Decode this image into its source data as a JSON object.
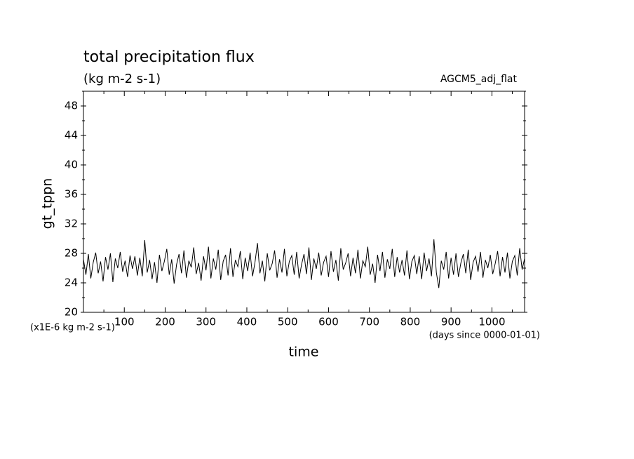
{
  "chart_data": {
    "type": "line",
    "title": "total precipitation flux",
    "subtitle": "(kg m-2 s-1)",
    "annotation": "AGCM5_adj_flat",
    "ylabel": "gt_tppn",
    "xlabel": "time",
    "yunit": "(x1E-6 kg m-2 s-1)",
    "xunit": "(days since 0000-01-01)",
    "xlim": [
      0,
      1080
    ],
    "ylim": [
      20,
      50
    ],
    "xticks": [
      100,
      200,
      300,
      400,
      500,
      600,
      700,
      800,
      900,
      1000
    ],
    "yticks": [
      20,
      24,
      28,
      32,
      36,
      40,
      44,
      48
    ],
    "xminor_ticks": [
      50,
      150,
      250,
      350,
      450,
      550,
      650,
      750,
      850,
      950,
      1050
    ],
    "yminor_ticks": [
      22,
      26,
      30,
      34,
      38,
      42,
      46,
      50
    ],
    "x": [
      0,
      6,
      12,
      18,
      24,
      30,
      36,
      42,
      48,
      54,
      60,
      66,
      72,
      78,
      84,
      90,
      96,
      102,
      108,
      114,
      120,
      126,
      132,
      138,
      144,
      150,
      156,
      162,
      168,
      174,
      180,
      186,
      192,
      198,
      204,
      210,
      216,
      222,
      228,
      234,
      240,
      246,
      252,
      258,
      264,
      270,
      276,
      282,
      288,
      294,
      300,
      306,
      312,
      318,
      324,
      330,
      336,
      342,
      348,
      354,
      360,
      366,
      372,
      378,
      384,
      390,
      396,
      402,
      408,
      414,
      420,
      426,
      432,
      438,
      444,
      450,
      456,
      462,
      468,
      474,
      480,
      486,
      492,
      498,
      504,
      510,
      516,
      522,
      528,
      534,
      540,
      546,
      552,
      558,
      564,
      570,
      576,
      582,
      588,
      594,
      600,
      606,
      612,
      618,
      624,
      630,
      636,
      642,
      648,
      654,
      660,
      666,
      672,
      678,
      684,
      690,
      696,
      702,
      708,
      714,
      720,
      726,
      732,
      738,
      744,
      750,
      756,
      762,
      768,
      774,
      780,
      786,
      792,
      798,
      804,
      810,
      816,
      822,
      828,
      834,
      840,
      846,
      852,
      858,
      864,
      870,
      876,
      882,
      888,
      894,
      900,
      906,
      912,
      918,
      924,
      930,
      936,
      942,
      948,
      954,
      960,
      966,
      972,
      978,
      984,
      990,
      996,
      1002,
      1008,
      1014,
      1020,
      1026,
      1032,
      1038,
      1044,
      1050,
      1056,
      1062,
      1068,
      1074,
      1080
    ],
    "series": [
      {
        "name": "gt_tppn",
        "color": "#000000",
        "values": [
          27.2,
          25.1,
          27.9,
          24.6,
          26.8,
          28.1,
          25.3,
          26.9,
          24.2,
          27.5,
          25.8,
          28.0,
          24.1,
          27.3,
          26.0,
          28.2,
          25.5,
          27.0,
          24.8,
          27.7,
          25.9,
          27.6,
          25.0,
          27.4,
          24.9,
          29.8,
          25.4,
          27.1,
          24.5,
          26.8,
          24.0,
          27.8,
          25.6,
          26.9,
          28.6,
          25.1,
          27.2,
          23.9,
          26.5,
          27.9,
          25.3,
          28.4,
          24.7,
          27.0,
          26.1,
          28.8,
          25.2,
          26.7,
          24.3,
          27.6,
          25.7,
          28.9,
          24.6,
          27.3,
          25.8,
          28.5,
          24.4,
          26.9,
          27.8,
          25.0,
          28.7,
          24.8,
          27.1,
          26.2,
          28.3,
          24.5,
          27.4,
          25.6,
          28.1,
          24.9,
          26.8,
          29.4,
          25.3,
          27.0,
          24.2,
          28.0,
          25.7,
          26.6,
          28.4,
          24.7,
          27.2,
          25.4,
          28.6,
          24.9,
          26.9,
          27.7,
          25.1,
          28.2,
          24.6,
          26.5,
          27.9,
          25.2,
          28.8,
          24.4,
          27.3,
          25.9,
          28.1,
          25.0,
          26.8,
          27.6,
          24.8,
          28.3,
          25.5,
          27.1,
          24.3,
          28.7,
          25.8,
          26.7,
          28.0,
          24.9,
          27.4,
          25.3,
          28.5,
          24.6,
          27.0,
          26.2,
          28.9,
          25.1,
          26.6,
          24.0,
          27.8,
          25.6,
          28.2,
          24.7,
          27.2,
          25.9,
          28.6,
          24.8,
          27.5,
          25.4,
          27.1,
          25.0,
          28.4,
          24.5,
          26.9,
          27.7,
          25.2,
          27.6,
          24.5,
          28.1,
          25.6,
          27.3,
          24.9,
          29.9,
          25.4,
          23.3,
          27.0,
          25.8,
          28.2,
          24.6,
          27.4,
          25.1,
          28.0,
          24.8,
          26.7,
          27.9,
          25.3,
          28.5,
          24.4,
          26.8,
          27.6,
          25.5,
          28.2,
          24.7,
          27.1,
          26.0,
          27.8,
          25.2,
          26.6,
          28.3,
          24.9,
          27.5,
          25.4,
          28.1,
          24.6,
          26.9,
          27.7,
          25.0,
          28.7,
          25.8,
          27.3
        ]
      }
    ]
  }
}
